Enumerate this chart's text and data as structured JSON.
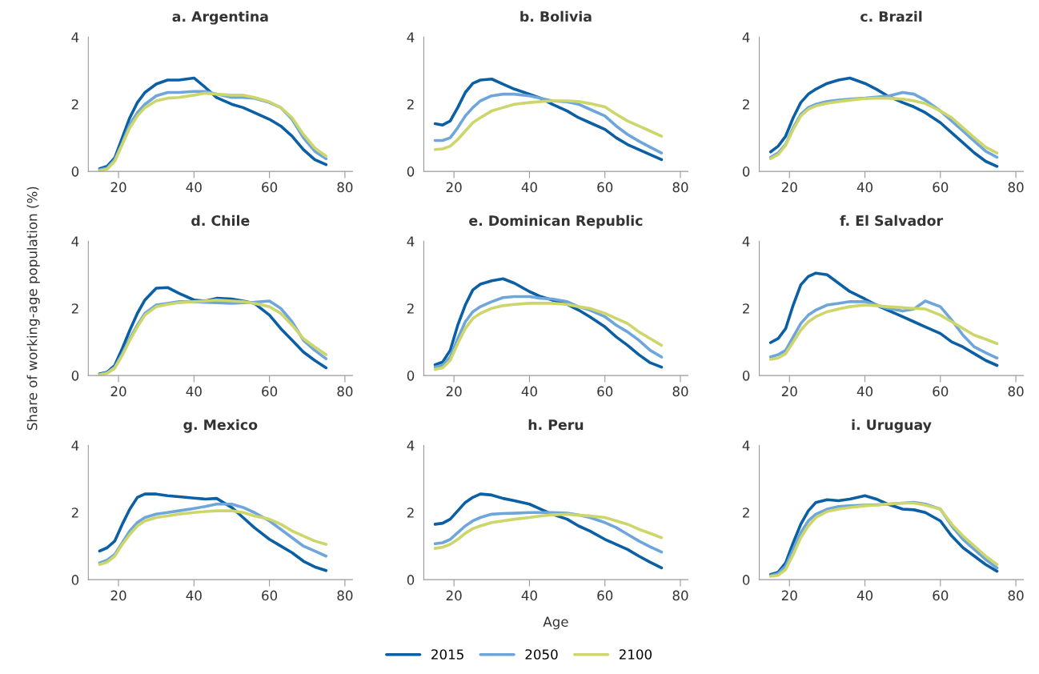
{
  "chart_data": [
    {
      "type": "line",
      "title": "a. Argentina",
      "x": [
        15,
        17,
        19,
        21,
        23,
        25,
        27,
        30,
        33,
        36,
        40,
        43,
        46,
        50,
        53,
        56,
        60,
        63,
        66,
        69,
        72,
        75
      ],
      "xlim": [
        12,
        82
      ],
      "xticks": [
        20,
        40,
        60,
        80
      ],
      "ylim": [
        0,
        4
      ],
      "yticks": [
        0,
        2,
        4
      ],
      "grid": false,
      "legend": "bottom",
      "series": [
        {
          "name": "2015",
          "color": "#0a5fa5",
          "values": [
            0.08,
            0.15,
            0.4,
            1.0,
            1.6,
            2.05,
            2.35,
            2.6,
            2.72,
            2.72,
            2.78,
            2.5,
            2.2,
            2.0,
            1.9,
            1.75,
            1.55,
            1.35,
            1.05,
            0.65,
            0.35,
            0.2
          ]
        },
        {
          "name": "2050",
          "color": "#6ea6dc",
          "values": [
            0.05,
            0.1,
            0.35,
            0.85,
            1.4,
            1.75,
            2.0,
            2.25,
            2.35,
            2.35,
            2.38,
            2.38,
            2.3,
            2.2,
            2.2,
            2.18,
            2.05,
            1.9,
            1.55,
            1.0,
            0.6,
            0.38
          ]
        },
        {
          "name": "2100",
          "color": "#cdd66a",
          "values": [
            0.02,
            0.07,
            0.3,
            0.8,
            1.3,
            1.65,
            1.9,
            2.1,
            2.18,
            2.2,
            2.27,
            2.33,
            2.3,
            2.27,
            2.27,
            2.2,
            2.07,
            1.9,
            1.6,
            1.1,
            0.7,
            0.45
          ]
        }
      ]
    },
    {
      "type": "line",
      "title": "b. Bolivia",
      "x": [
        15,
        17,
        19,
        21,
        23,
        25,
        27,
        30,
        33,
        36,
        40,
        43,
        46,
        50,
        53,
        56,
        60,
        63,
        66,
        69,
        72,
        75
      ],
      "xlim": [
        12,
        82
      ],
      "xticks": [
        20,
        40,
        60,
        80
      ],
      "ylim": [
        0,
        4
      ],
      "yticks": [
        0,
        2,
        4
      ],
      "grid": false,
      "legend": "bottom",
      "series": [
        {
          "name": "2015",
          "color": "#0a5fa5",
          "values": [
            1.42,
            1.38,
            1.5,
            1.9,
            2.35,
            2.62,
            2.72,
            2.75,
            2.6,
            2.45,
            2.3,
            2.18,
            2.0,
            1.8,
            1.6,
            1.45,
            1.25,
            1.0,
            0.8,
            0.65,
            0.5,
            0.35
          ]
        },
        {
          "name": "2050",
          "color": "#6ea6dc",
          "values": [
            0.92,
            0.92,
            1.0,
            1.3,
            1.65,
            1.9,
            2.1,
            2.25,
            2.3,
            2.3,
            2.25,
            2.18,
            2.1,
            2.07,
            2.0,
            1.85,
            1.65,
            1.35,
            1.1,
            0.9,
            0.72,
            0.55
          ]
        },
        {
          "name": "2100",
          "color": "#cdd66a",
          "values": [
            0.65,
            0.67,
            0.75,
            0.95,
            1.2,
            1.45,
            1.6,
            1.8,
            1.9,
            2.0,
            2.05,
            2.08,
            2.1,
            2.1,
            2.08,
            2.02,
            1.92,
            1.7,
            1.5,
            1.35,
            1.2,
            1.05
          ]
        }
      ]
    },
    {
      "type": "line",
      "title": "c. Brazil",
      "x": [
        15,
        17,
        19,
        21,
        23,
        25,
        27,
        30,
        33,
        36,
        40,
        43,
        46,
        50,
        53,
        56,
        60,
        63,
        66,
        69,
        72,
        75
      ],
      "xlim": [
        12,
        82
      ],
      "xticks": [
        20,
        40,
        60,
        80
      ],
      "ylim": [
        0,
        4
      ],
      "yticks": [
        0,
        2,
        4
      ],
      "grid": false,
      "legend": "bottom",
      "series": [
        {
          "name": "2015",
          "color": "#0a5fa5",
          "values": [
            0.58,
            0.75,
            1.05,
            1.6,
            2.05,
            2.3,
            2.45,
            2.62,
            2.72,
            2.78,
            2.62,
            2.45,
            2.25,
            2.05,
            1.92,
            1.75,
            1.45,
            1.15,
            0.85,
            0.55,
            0.3,
            0.15
          ]
        },
        {
          "name": "2050",
          "color": "#6ea6dc",
          "values": [
            0.42,
            0.55,
            0.8,
            1.3,
            1.7,
            1.9,
            2.0,
            2.08,
            2.12,
            2.15,
            2.18,
            2.21,
            2.24,
            2.35,
            2.3,
            2.12,
            1.8,
            1.5,
            1.2,
            0.9,
            0.6,
            0.42
          ]
        },
        {
          "name": "2100",
          "color": "#cdd66a",
          "values": [
            0.38,
            0.5,
            0.78,
            1.25,
            1.65,
            1.85,
            1.95,
            2.03,
            2.08,
            2.12,
            2.17,
            2.18,
            2.18,
            2.15,
            2.1,
            2.02,
            1.8,
            1.6,
            1.3,
            1.0,
            0.72,
            0.55
          ]
        }
      ]
    },
    {
      "type": "line",
      "title": "d. Chile",
      "ylabel": "Share of working-age population (%)",
      "x": [
        15,
        17,
        19,
        21,
        23,
        25,
        27,
        30,
        33,
        36,
        40,
        43,
        46,
        50,
        53,
        56,
        60,
        63,
        66,
        69,
        72,
        75
      ],
      "xlim": [
        12,
        82
      ],
      "xticks": [
        20,
        40,
        60,
        80
      ],
      "ylim": [
        0,
        4
      ],
      "yticks": [
        0,
        2,
        4
      ],
      "grid": false,
      "legend": "bottom",
      "series": [
        {
          "name": "2015",
          "color": "#0a5fa5",
          "values": [
            0.05,
            0.1,
            0.3,
            0.8,
            1.35,
            1.85,
            2.25,
            2.6,
            2.62,
            2.45,
            2.25,
            2.22,
            2.3,
            2.28,
            2.22,
            2.15,
            1.8,
            1.4,
            1.05,
            0.7,
            0.45,
            0.23
          ]
        },
        {
          "name": "2050",
          "color": "#6ea6dc",
          "values": [
            0.03,
            0.08,
            0.25,
            0.65,
            1.1,
            1.5,
            1.85,
            2.1,
            2.15,
            2.2,
            2.2,
            2.18,
            2.17,
            2.15,
            2.17,
            2.18,
            2.22,
            2.0,
            1.6,
            1.05,
            0.75,
            0.5
          ]
        },
        {
          "name": "2100",
          "color": "#cdd66a",
          "values": [
            0.02,
            0.07,
            0.22,
            0.6,
            1.05,
            1.45,
            1.8,
            2.05,
            2.12,
            2.17,
            2.2,
            2.22,
            2.25,
            2.22,
            2.2,
            2.15,
            2.05,
            1.85,
            1.5,
            1.1,
            0.85,
            0.62
          ]
        }
      ]
    },
    {
      "type": "line",
      "title": "e. Dominican Republic",
      "x": [
        15,
        17,
        19,
        21,
        23,
        25,
        27,
        30,
        33,
        36,
        40,
        43,
        46,
        50,
        53,
        56,
        60,
        63,
        66,
        69,
        72,
        75
      ],
      "xlim": [
        12,
        82
      ],
      "xticks": [
        20,
        40,
        60,
        80
      ],
      "ylim": [
        0,
        4
      ],
      "yticks": [
        0,
        2,
        4
      ],
      "grid": false,
      "legend": "bottom",
      "series": [
        {
          "name": "2015",
          "color": "#0a5fa5",
          "values": [
            0.32,
            0.4,
            0.75,
            1.5,
            2.1,
            2.55,
            2.72,
            2.82,
            2.88,
            2.75,
            2.5,
            2.35,
            2.25,
            2.12,
            1.95,
            1.75,
            1.45,
            1.15,
            0.9,
            0.62,
            0.38,
            0.25
          ]
        },
        {
          "name": "2050",
          "color": "#6ea6dc",
          "values": [
            0.25,
            0.3,
            0.55,
            1.1,
            1.6,
            1.9,
            2.05,
            2.2,
            2.32,
            2.35,
            2.35,
            2.3,
            2.28,
            2.2,
            2.05,
            1.95,
            1.75,
            1.5,
            1.3,
            1.05,
            0.75,
            0.55
          ]
        },
        {
          "name": "2100",
          "color": "#cdd66a",
          "values": [
            0.18,
            0.23,
            0.45,
            0.95,
            1.4,
            1.7,
            1.85,
            2.0,
            2.08,
            2.12,
            2.15,
            2.15,
            2.15,
            2.12,
            2.05,
            2.0,
            1.85,
            1.7,
            1.55,
            1.3,
            1.1,
            0.9
          ]
        }
      ]
    },
    {
      "type": "line",
      "title": "f. El Salvador",
      "x": [
        15,
        17,
        19,
        21,
        23,
        25,
        27,
        30,
        33,
        36,
        40,
        43,
        46,
        50,
        53,
        56,
        60,
        63,
        66,
        69,
        72,
        75
      ],
      "xlim": [
        12,
        82
      ],
      "xticks": [
        20,
        40,
        60,
        80
      ],
      "ylim": [
        0,
        4
      ],
      "yticks": [
        0,
        2,
        4
      ],
      "grid": false,
      "legend": "bottom",
      "series": [
        {
          "name": "2015",
          "color": "#0a5fa5",
          "values": [
            0.98,
            1.1,
            1.4,
            2.1,
            2.7,
            2.95,
            3.05,
            3.0,
            2.75,
            2.5,
            2.28,
            2.1,
            1.95,
            1.75,
            1.6,
            1.45,
            1.25,
            1.0,
            0.85,
            0.65,
            0.45,
            0.3
          ]
        },
        {
          "name": "2050",
          "color": "#6ea6dc",
          "values": [
            0.55,
            0.62,
            0.75,
            1.15,
            1.55,
            1.8,
            1.95,
            2.1,
            2.15,
            2.2,
            2.2,
            2.1,
            2.0,
            1.92,
            1.98,
            2.22,
            2.05,
            1.65,
            1.2,
            0.85,
            0.68,
            0.52
          ]
        },
        {
          "name": "2100",
          "color": "#cdd66a",
          "values": [
            0.48,
            0.52,
            0.65,
            1.0,
            1.35,
            1.6,
            1.75,
            1.9,
            1.98,
            2.05,
            2.1,
            2.08,
            2.05,
            2.02,
            2.0,
            1.98,
            1.8,
            1.6,
            1.4,
            1.2,
            1.08,
            0.95
          ]
        }
      ]
    },
    {
      "type": "line",
      "title": "g. Mexico",
      "x": [
        15,
        17,
        19,
        21,
        23,
        25,
        27,
        30,
        33,
        36,
        40,
        43,
        46,
        50,
        53,
        56,
        60,
        63,
        66,
        69,
        72,
        75
      ],
      "xlim": [
        12,
        82
      ],
      "xticks": [
        20,
        40,
        60,
        80
      ],
      "ylim": [
        0,
        4
      ],
      "yticks": [
        0,
        2,
        4
      ],
      "grid": false,
      "legend": "bottom",
      "series": [
        {
          "name": "2015",
          "color": "#0a5fa5",
          "values": [
            0.85,
            0.95,
            1.15,
            1.65,
            2.1,
            2.45,
            2.55,
            2.55,
            2.5,
            2.47,
            2.43,
            2.4,
            2.42,
            2.15,
            1.85,
            1.55,
            1.2,
            1.0,
            0.8,
            0.55,
            0.38,
            0.27
          ]
        },
        {
          "name": "2050",
          "color": "#6ea6dc",
          "values": [
            0.5,
            0.58,
            0.75,
            1.1,
            1.45,
            1.7,
            1.85,
            1.95,
            2.0,
            2.05,
            2.12,
            2.18,
            2.25,
            2.25,
            2.15,
            2.0,
            1.75,
            1.5,
            1.25,
            1.0,
            0.85,
            0.7
          ]
        },
        {
          "name": "2100",
          "color": "#cdd66a",
          "values": [
            0.45,
            0.52,
            0.7,
            1.05,
            1.35,
            1.6,
            1.75,
            1.85,
            1.9,
            1.95,
            2.0,
            2.03,
            2.05,
            2.05,
            2.0,
            1.9,
            1.8,
            1.65,
            1.45,
            1.3,
            1.15,
            1.05
          ]
        }
      ]
    },
    {
      "type": "line",
      "title": "h. Peru",
      "xlabel": "Age",
      "x": [
        15,
        17,
        19,
        21,
        23,
        25,
        27,
        30,
        33,
        36,
        40,
        43,
        46,
        50,
        53,
        56,
        60,
        63,
        66,
        69,
        72,
        75
      ],
      "xlim": [
        12,
        82
      ],
      "xticks": [
        20,
        40,
        60,
        80
      ],
      "ylim": [
        0,
        4
      ],
      "yticks": [
        0,
        2,
        4
      ],
      "grid": false,
      "legend": "bottom",
      "series": [
        {
          "name": "2015",
          "color": "#0a5fa5",
          "values": [
            1.65,
            1.68,
            1.8,
            2.05,
            2.3,
            2.45,
            2.55,
            2.52,
            2.42,
            2.35,
            2.25,
            2.1,
            1.95,
            1.8,
            1.6,
            1.45,
            1.2,
            1.05,
            0.9,
            0.7,
            0.52,
            0.35
          ]
        },
        {
          "name": "2050",
          "color": "#6ea6dc",
          "values": [
            1.07,
            1.1,
            1.2,
            1.4,
            1.6,
            1.75,
            1.85,
            1.95,
            1.97,
            1.98,
            2.0,
            2.0,
            2.0,
            1.98,
            1.93,
            1.85,
            1.7,
            1.55,
            1.35,
            1.15,
            0.98,
            0.82
          ]
        },
        {
          "name": "2100",
          "color": "#cdd66a",
          "values": [
            0.93,
            0.97,
            1.05,
            1.2,
            1.38,
            1.52,
            1.6,
            1.7,
            1.75,
            1.8,
            1.85,
            1.9,
            1.93,
            1.95,
            1.92,
            1.9,
            1.85,
            1.75,
            1.65,
            1.5,
            1.38,
            1.25
          ]
        }
      ]
    },
    {
      "type": "line",
      "title": "i. Uruguay",
      "x": [
        15,
        17,
        19,
        21,
        23,
        25,
        27,
        30,
        33,
        36,
        40,
        43,
        46,
        50,
        53,
        56,
        60,
        63,
        66,
        69,
        72,
        75
      ],
      "xlim": [
        12,
        82
      ],
      "xticks": [
        20,
        40,
        60,
        80
      ],
      "ylim": [
        0,
        4
      ],
      "yticks": [
        0,
        2,
        4
      ],
      "grid": false,
      "legend": "bottom",
      "series": [
        {
          "name": "2015",
          "color": "#0a5fa5",
          "values": [
            0.15,
            0.22,
            0.5,
            1.1,
            1.65,
            2.05,
            2.3,
            2.38,
            2.35,
            2.4,
            2.5,
            2.4,
            2.25,
            2.1,
            2.08,
            2.0,
            1.75,
            1.3,
            0.95,
            0.7,
            0.45,
            0.25
          ]
        },
        {
          "name": "2050",
          "color": "#6ea6dc",
          "values": [
            0.12,
            0.18,
            0.4,
            0.9,
            1.4,
            1.75,
            1.95,
            2.1,
            2.18,
            2.2,
            2.22,
            2.23,
            2.25,
            2.28,
            2.3,
            2.25,
            2.1,
            1.6,
            1.2,
            0.9,
            0.6,
            0.35
          ]
        },
        {
          "name": "2100",
          "color": "#cdd66a",
          "values": [
            0.1,
            0.13,
            0.3,
            0.75,
            1.25,
            1.6,
            1.85,
            2.03,
            2.1,
            2.15,
            2.2,
            2.22,
            2.25,
            2.28,
            2.28,
            2.22,
            2.1,
            1.65,
            1.3,
            1.0,
            0.7,
            0.45
          ]
        }
      ]
    }
  ]
}
